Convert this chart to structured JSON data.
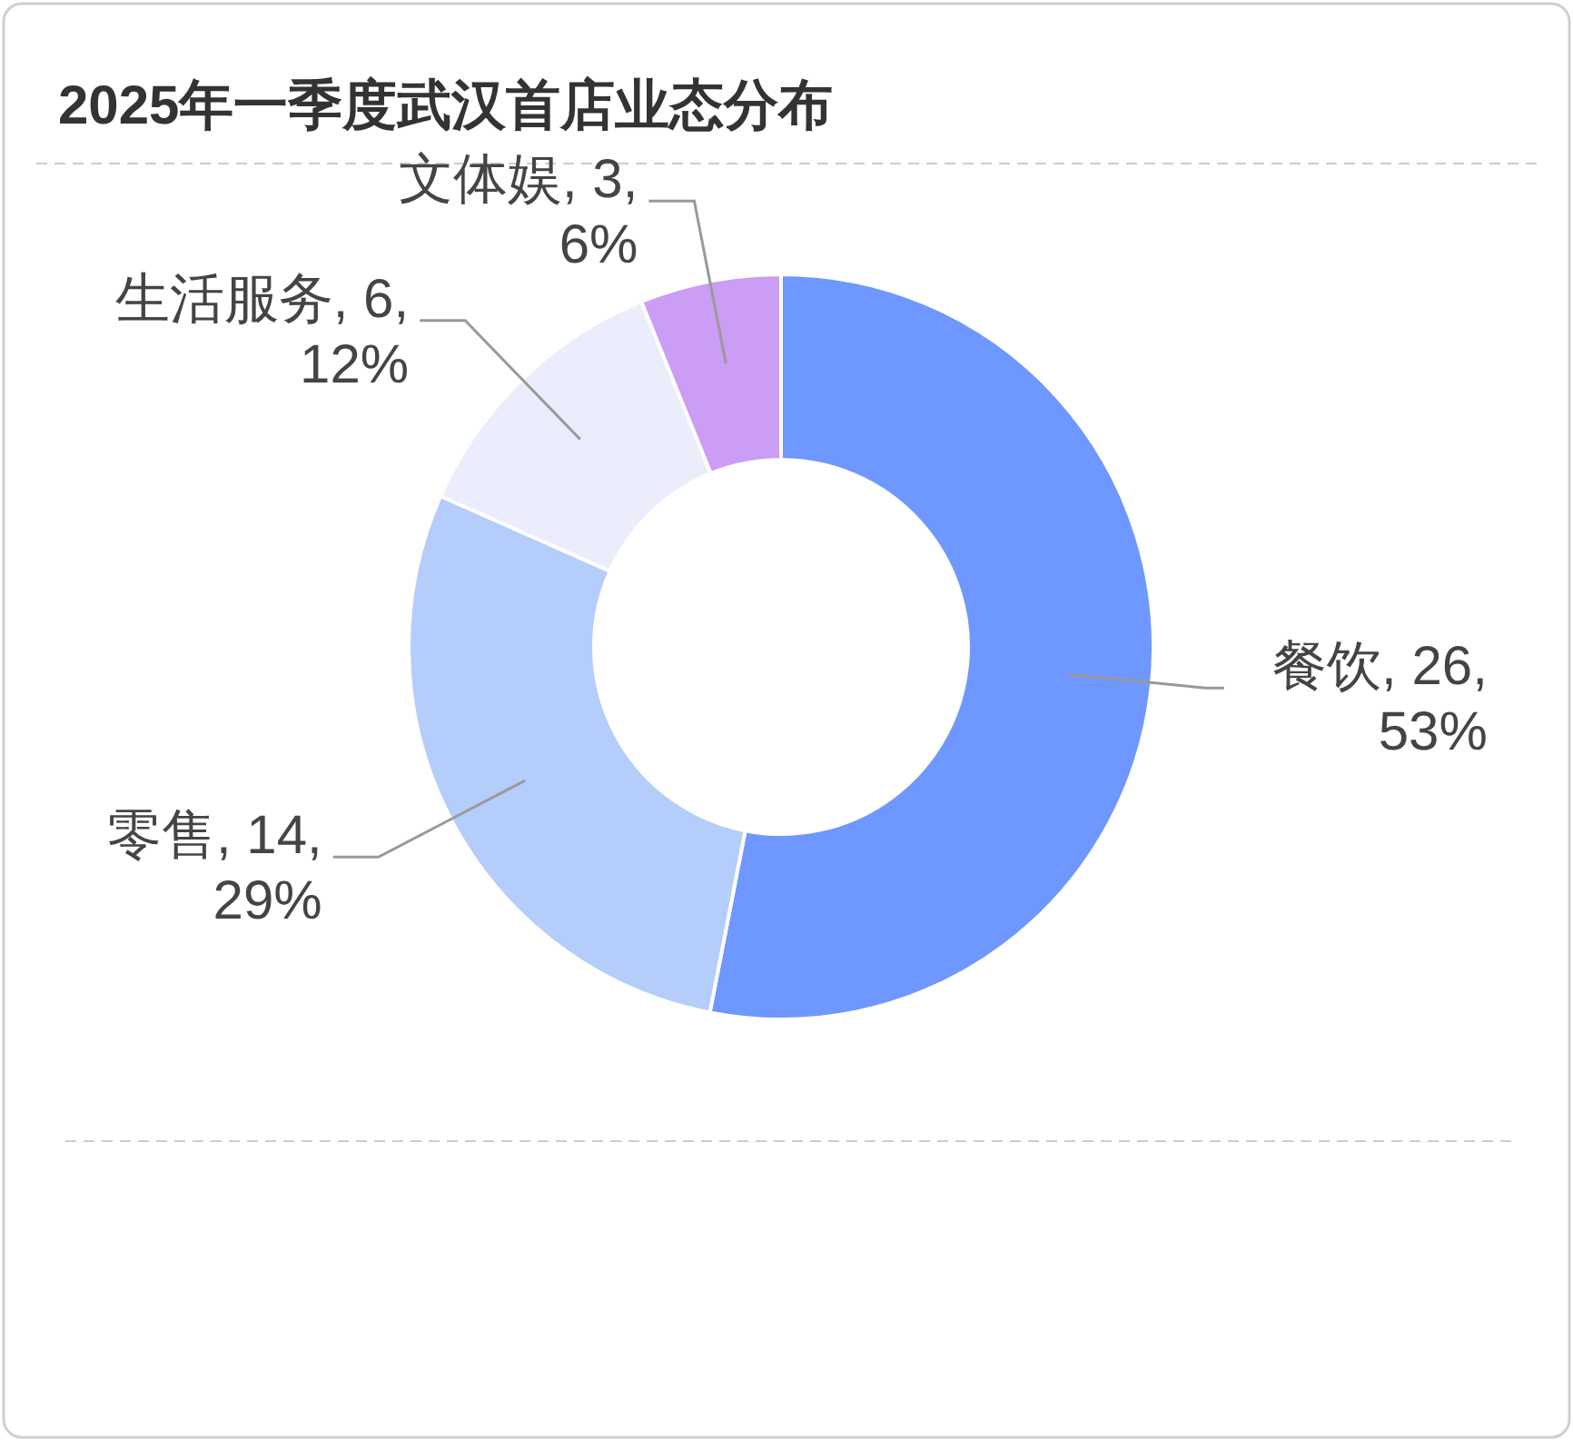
{
  "chart_data": {
    "type": "donut",
    "title": "2025年一季度武汉首店业态分布",
    "categories": [
      "餐饮",
      "零售",
      "生活服务",
      "文体娱"
    ],
    "values": [
      26,
      14,
      6,
      3
    ],
    "value_labels": [
      "26, 53%",
      "14, 29%",
      "6, 12%",
      "3, 6%"
    ],
    "colors": [
      "#6e97ff",
      "#b5cdfb",
      "#e9edfc",
      "#cc9df4"
    ]
  }
}
